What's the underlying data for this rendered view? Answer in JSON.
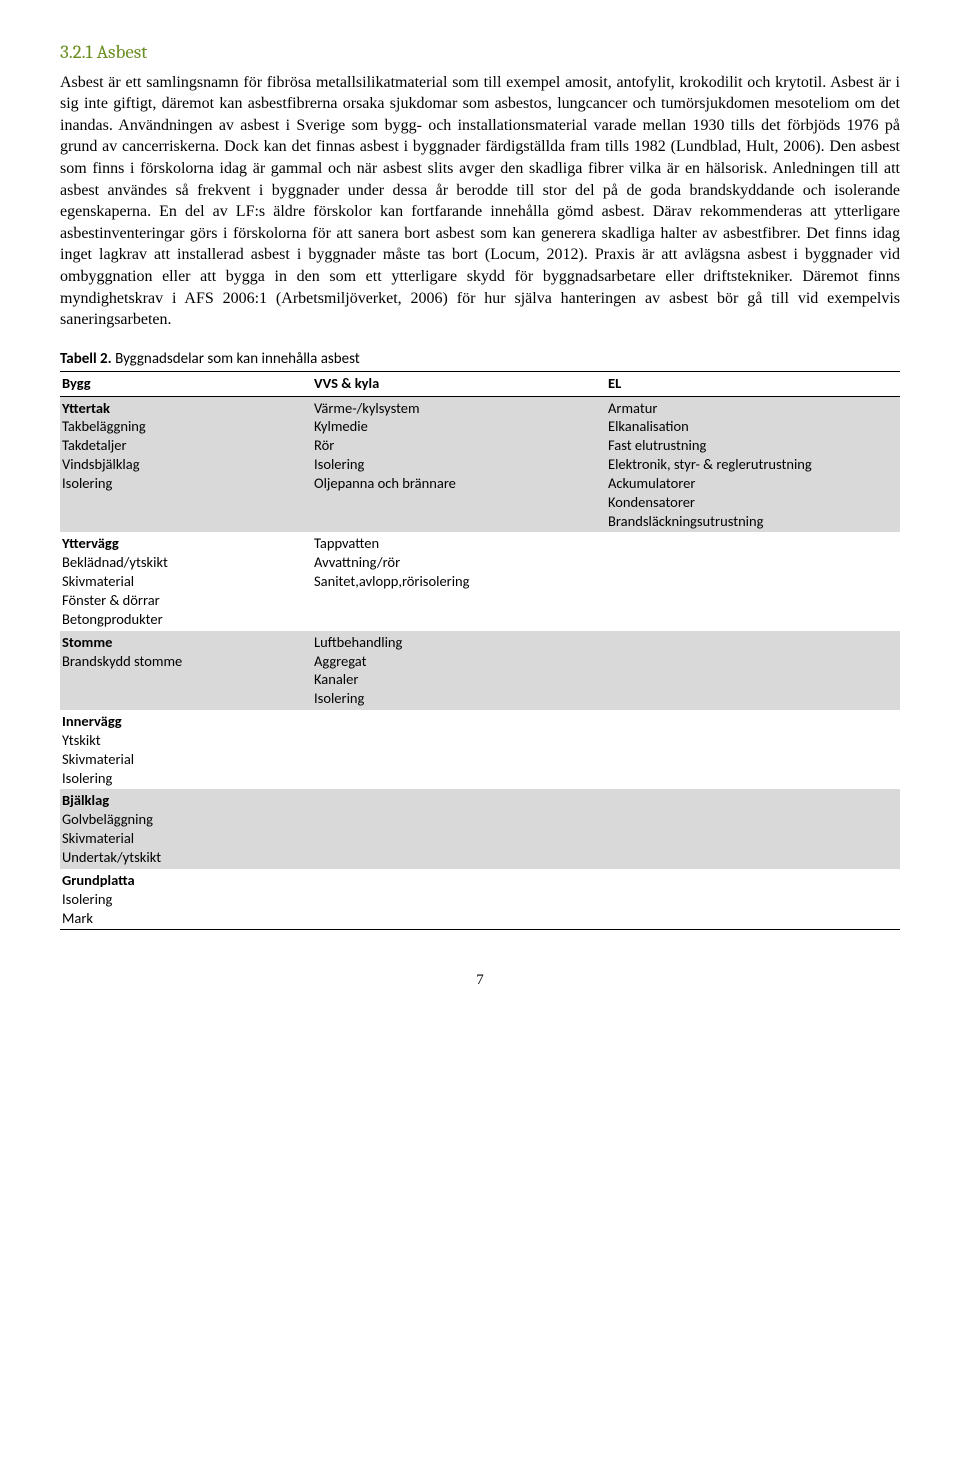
{
  "heading": "3.2.1 Asbest",
  "paragraph": "Asbest är ett samlingsnamn för fibrösa metallsilikatmaterial som till exempel amosit, antofylit, krokodilit och krytotil. Asbest är i sig inte giftigt, däremot kan asbestfibrerna orsaka sjukdomar som asbestos, lungcancer och tumörsjukdomen mesoteliom om det inandas. Användningen av asbest i Sverige som bygg- och installationsmaterial varade mellan 1930 tills det förbjöds 1976 på grund av cancerriskerna. Dock kan det finnas asbest i byggnader färdigställda fram tills 1982 (Lundblad, Hult, 2006). Den asbest som finns i förskolorna idag är gammal och när asbest slits avger den skadliga fibrer vilka är en hälsorisk. Anledningen till att asbest användes så frekvent i byggnader under dessa år berodde till stor del på de goda brandskyddande och isolerande egenskaperna. En del av LF:s äldre förskolor kan fortfarande innehålla gömd asbest. Därav rekommenderas att ytterligare asbestinventeringar görs i förskolorna för att sanera bort asbest som kan generera skadliga halter av asbestfibrer. Det finns idag inget lagkrav att installerad asbest i byggnader måste tas bort (Locum, 2012). Praxis är att avlägsna asbest i byggnader vid ombyggnation eller att bygga in den som ett ytterligare skydd för byggnadsarbetare eller driftstekniker. Däremot finns myndighetskrav i AFS 2006:1 (Arbetsmiljöverket, 2006) för hur själva hanteringen av asbest bör gå till vid exempelvis saneringsarbeten.",
  "table_caption_label": "Tabell 2.",
  "table_caption_text": " Byggnadsdelar som kan innehålla asbest",
  "table": {
    "headers": [
      "Bygg",
      "VVS & kyla",
      "EL"
    ],
    "header_bg": "#ffffff",
    "shaded_bg": "#d9d9d9",
    "plain_bg": "#ffffff",
    "rows": [
      {
        "shaded": true,
        "cells": [
          [
            {
              "text": "Yttertak",
              "bold": true
            },
            {
              "text": "Takbeläggning",
              "bold": false
            },
            {
              "text": "Takdetaljer",
              "bold": false
            },
            {
              "text": "Vindsbjälklag",
              "bold": false
            },
            {
              "text": "Isolering",
              "bold": false
            }
          ],
          [
            {
              "text": "Värme-/kylsystem",
              "bold": false
            },
            {
              "text": "Kylmedie",
              "bold": false
            },
            {
              "text": "Rör",
              "bold": false
            },
            {
              "text": "Isolering",
              "bold": false
            },
            {
              "text": "Oljepanna och brännare",
              "bold": false
            }
          ],
          [
            {
              "text": "Armatur",
              "bold": false
            },
            {
              "text": "Elkanalisation",
              "bold": false
            },
            {
              "text": "Fast elutrustning",
              "bold": false
            },
            {
              "text": "Elektronik, styr- & reglerutrustning",
              "bold": false
            },
            {
              "text": "Ackumulatorer",
              "bold": false
            },
            {
              "text": "Kondensatorer",
              "bold": false
            },
            {
              "text": "Brandsläckningsutrustning",
              "bold": false
            }
          ]
        ]
      },
      {
        "shaded": false,
        "cells": [
          [
            {
              "text": "Yttervägg",
              "bold": true
            },
            {
              "text": "Beklädnad/ytskikt",
              "bold": false
            },
            {
              "text": "Skivmaterial",
              "bold": false
            },
            {
              "text": "Fönster & dörrar",
              "bold": false
            },
            {
              "text": "Betongprodukter",
              "bold": false
            }
          ],
          [
            {
              "text": "Tappvatten",
              "bold": false
            },
            {
              "text": "Avvattning/rör",
              "bold": false
            },
            {
              "text": "Sanitet,avlopp,rörisolering",
              "bold": false
            }
          ],
          []
        ]
      },
      {
        "shaded": true,
        "cells": [
          [
            {
              "text": "Stomme",
              "bold": true
            },
            {
              "text": "Brandskydd stomme",
              "bold": false
            }
          ],
          [
            {
              "text": "Luftbehandling",
              "bold": false
            },
            {
              "text": "Aggregat",
              "bold": false
            },
            {
              "text": "Kanaler",
              "bold": false
            },
            {
              "text": "Isolering",
              "bold": false
            }
          ],
          []
        ]
      },
      {
        "shaded": false,
        "cells": [
          [
            {
              "text": "Innervägg",
              "bold": true
            },
            {
              "text": "Ytskikt",
              "bold": false
            },
            {
              "text": "Skivmaterial",
              "bold": false
            },
            {
              "text": "Isolering",
              "bold": false
            }
          ],
          [],
          []
        ]
      },
      {
        "shaded": true,
        "cells": [
          [
            {
              "text": "Bjälklag",
              "bold": true
            },
            {
              "text": "Golvbeläggning",
              "bold": false
            },
            {
              "text": "Skivmaterial",
              "bold": false
            },
            {
              "text": "Undertak/ytskikt",
              "bold": false
            }
          ],
          [],
          []
        ]
      },
      {
        "shaded": false,
        "cells": [
          [
            {
              "text": "Grundplatta",
              "bold": true
            },
            {
              "text": "Isolering",
              "bold": false
            },
            {
              "text": "Mark",
              "bold": false
            }
          ],
          [],
          []
        ]
      }
    ]
  },
  "page_number": "7",
  "colors": {
    "heading_color": "#6b8e23",
    "text_color": "#000000",
    "background": "#ffffff"
  }
}
